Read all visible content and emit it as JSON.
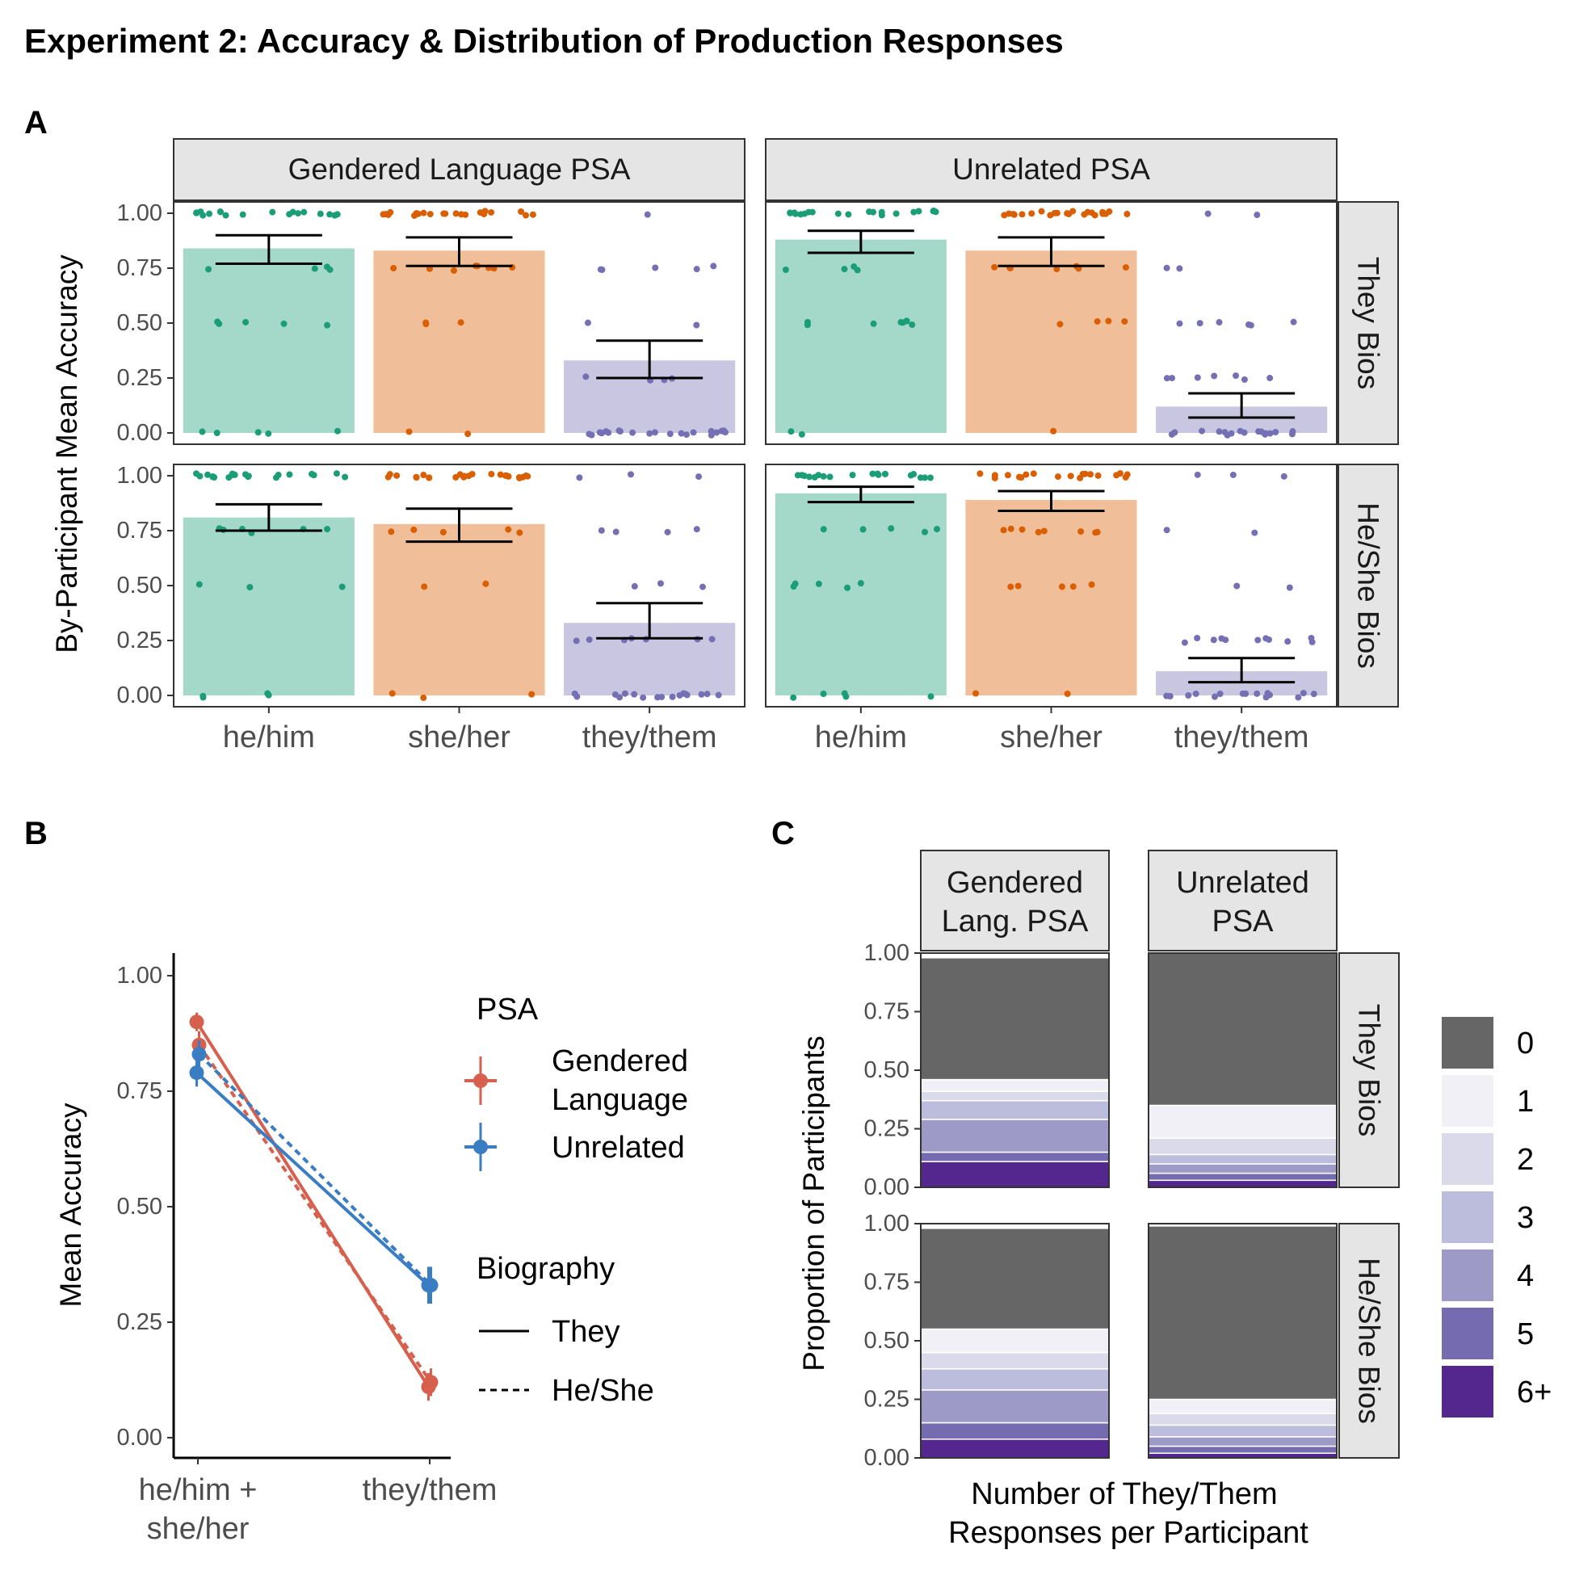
{
  "title": "Experiment 2: Accuracy & Distribution of Production Responses",
  "colors": {
    "he_him": "#1b9e77",
    "she_her": "#d95f02",
    "they_them": "#7570b3",
    "gendered": "#d6604d",
    "unrelated": "#3a7dc3",
    "count_0": "#666666",
    "strip_fill": "#e5e5e5"
  },
  "chart_data": [
    {
      "panel_label": "A",
      "type": "bar",
      "ylabel": "By-Participant Mean Accuracy",
      "ylim": [
        0,
        1
      ],
      "yticks": [
        "0.00",
        "0.25",
        "0.50",
        "0.75",
        "1.00"
      ],
      "categories": [
        "he/him",
        "she/her",
        "they/them"
      ],
      "col_facets": [
        "Gendered Language PSA",
        "Unrelated PSA"
      ],
      "row_facets": [
        "They Bios",
        "He/She Bios"
      ],
      "facets": [
        {
          "col": 0,
          "row": 0,
          "values": [
            0.84,
            0.83,
            0.33
          ],
          "ci_low": [
            0.77,
            0.76,
            0.25
          ],
          "ci_high": [
            0.9,
            0.89,
            0.42
          ]
        },
        {
          "col": 1,
          "row": 0,
          "values": [
            0.88,
            0.83,
            0.12
          ],
          "ci_low": [
            0.82,
            0.76,
            0.07
          ],
          "ci_high": [
            0.92,
            0.89,
            0.18
          ]
        },
        {
          "col": 0,
          "row": 1,
          "values": [
            0.81,
            0.78,
            0.33
          ],
          "ci_low": [
            0.75,
            0.7,
            0.26
          ],
          "ci_high": [
            0.87,
            0.85,
            0.42
          ]
        },
        {
          "col": 1,
          "row": 1,
          "values": [
            0.92,
            0.89,
            0.11
          ],
          "ci_low": [
            0.88,
            0.84,
            0.06
          ],
          "ci_high": [
            0.95,
            0.93,
            0.17
          ]
        }
      ]
    },
    {
      "panel_label": "B",
      "type": "line",
      "ylabel": "Mean Accuracy",
      "ylim": [
        0,
        1
      ],
      "yticks": [
        "0.00",
        "0.25",
        "0.50",
        "0.75",
        "1.00"
      ],
      "x": [
        "he/him + she/her",
        "they/them"
      ],
      "legend_psa_title": "PSA",
      "legend_psa": [
        "Gendered Language",
        "Unrelated"
      ],
      "legend_bio_title": "Biography",
      "legend_bio": [
        "They",
        "He/She"
      ],
      "series": [
        {
          "psa": 0,
          "bio": 0,
          "values": [
            0.9,
            0.11
          ],
          "ci_low": [
            0.88,
            0.08
          ],
          "ci_high": [
            0.92,
            0.14
          ]
        },
        {
          "psa": 0,
          "bio": 1,
          "values": [
            0.85,
            0.12
          ],
          "ci_low": [
            0.82,
            0.09
          ],
          "ci_high": [
            0.88,
            0.15
          ]
        },
        {
          "psa": 1,
          "bio": 0,
          "values": [
            0.79,
            0.33
          ],
          "ci_low": [
            0.76,
            0.29
          ],
          "ci_high": [
            0.83,
            0.37
          ]
        },
        {
          "psa": 1,
          "bio": 1,
          "values": [
            0.83,
            0.33
          ],
          "ci_low": [
            0.8,
            0.29
          ],
          "ci_high": [
            0.86,
            0.37
          ]
        }
      ]
    },
    {
      "panel_label": "C",
      "type": "bar",
      "stacked": true,
      "ylabel": "Proportion of Participants",
      "xlabel": "Number of They/Them Responses per Participant",
      "ylim": [
        0,
        1
      ],
      "yticks": [
        "0.00",
        "0.25",
        "0.50",
        "0.75",
        "1.00"
      ],
      "col_facets": [
        "Gendered Lang. PSA",
        "Unrelated PSA"
      ],
      "row_facets": [
        "They Bios",
        "He/She Bios"
      ],
      "legend": [
        "0",
        "1",
        "2",
        "3",
        "4",
        "5",
        "6+"
      ],
      "legend_colors": [
        "#666666",
        "#f2f0f7",
        "#dadaeb",
        "#bcbddc",
        "#9e9ac8",
        "#756bb1",
        "#54278f"
      ],
      "facets": [
        {
          "col": 0,
          "row": 0,
          "proportions": [
            0.52,
            0.05,
            0.04,
            0.08,
            0.14,
            0.04,
            0.11
          ]
        },
        {
          "col": 1,
          "row": 0,
          "proportions": [
            0.65,
            0.14,
            0.07,
            0.04,
            0.04,
            0.03,
            0.03
          ]
        },
        {
          "col": 0,
          "row": 1,
          "proportions": [
            0.43,
            0.1,
            0.07,
            0.09,
            0.14,
            0.07,
            0.08
          ]
        },
        {
          "col": 1,
          "row": 1,
          "proportions": [
            0.74,
            0.06,
            0.05,
            0.05,
            0.04,
            0.03,
            0.02
          ]
        }
      ]
    }
  ]
}
